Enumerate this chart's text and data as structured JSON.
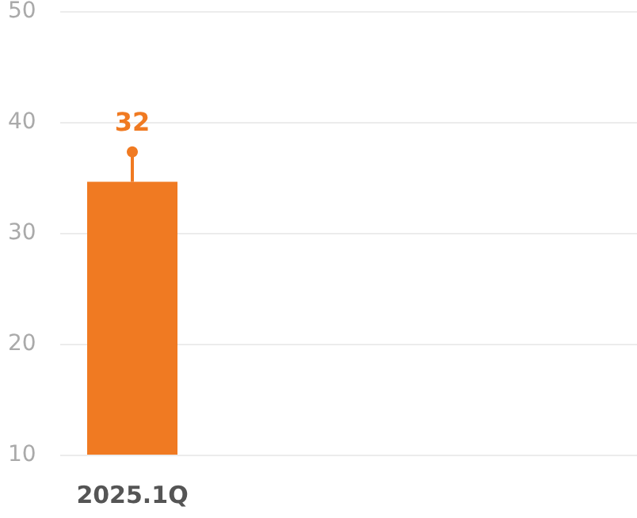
{
  "chart_data": {
    "type": "bar",
    "categories": [
      "2025.1Q",
      null,
      null,
      null
    ],
    "series": [
      {
        "color": "#f07a22",
        "values": [
          34.6,
          null,
          null,
          null
        ]
      },
      {
        "type": "lollipop",
        "color": "#f07a22",
        "values": [
          37.3,
          null,
          null,
          null
        ]
      }
    ],
    "annotations": [
      "32"
    ],
    "ylim": [
      10,
      50
    ],
    "yticks": [
      10,
      20,
      30,
      40,
      50
    ],
    "grid": "y"
  }
}
